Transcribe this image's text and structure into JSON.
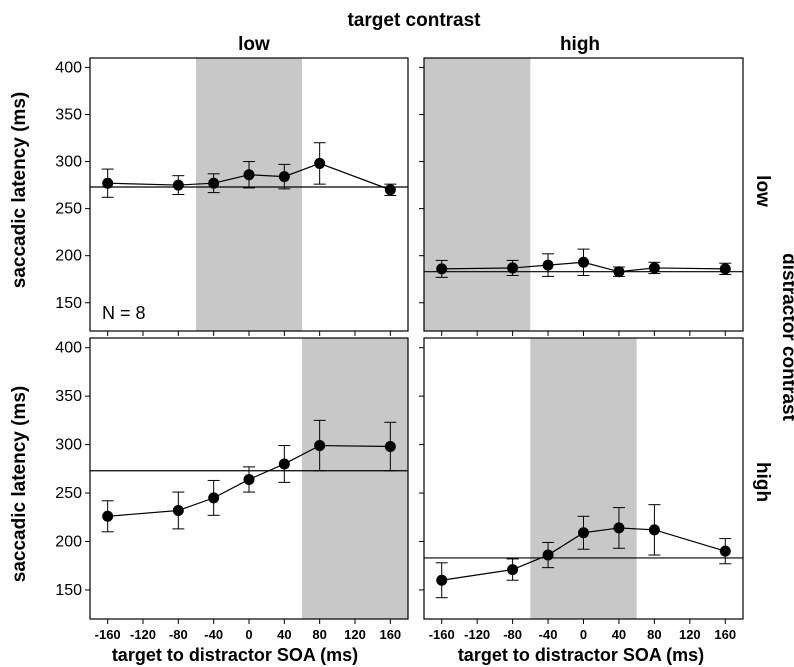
{
  "figure": {
    "top_title": "target contrast",
    "col_titles": [
      "low",
      "high"
    ],
    "right_title": "distractor contrast",
    "row_titles": [
      "low",
      "high"
    ],
    "ylabel": "saccadic latency (ms)",
    "xlabel": "target to distractor SOA (ms)",
    "annotation": "N = 8"
  },
  "chart_data": [
    {
      "type": "line",
      "panel": "target low / distractor low",
      "x": [
        -160,
        -80,
        -40,
        0,
        40,
        80,
        160
      ],
      "y": [
        277,
        275,
        277,
        286,
        284,
        298,
        270
      ],
      "err": [
        15,
        10,
        10,
        14,
        13,
        22,
        6
      ],
      "baseline": 273,
      "shaded_x": [
        -60,
        60
      ],
      "xlim": [
        -180,
        180
      ],
      "ylim": [
        120,
        410
      ],
      "yticks": [
        150,
        200,
        250,
        300,
        350,
        400
      ],
      "xticks": [
        -160,
        -120,
        -80,
        -40,
        0,
        40,
        80,
        120,
        160
      ],
      "annotation": "N = 8"
    },
    {
      "type": "line",
      "panel": "target high / distractor low",
      "x": [
        -160,
        -80,
        -40,
        0,
        40,
        80,
        160
      ],
      "y": [
        186,
        187,
        190,
        193,
        183,
        187,
        186
      ],
      "err": [
        9,
        8,
        12,
        14,
        5,
        6,
        6
      ],
      "baseline": 183,
      "shaded_x": [
        -180,
        -60
      ],
      "xlim": [
        -180,
        180
      ],
      "ylim": [
        120,
        410
      ],
      "yticks": [
        150,
        200,
        250,
        300,
        350,
        400
      ],
      "xticks": [
        -160,
        -120,
        -80,
        -40,
        0,
        40,
        80,
        120,
        160
      ]
    },
    {
      "type": "line",
      "panel": "target low / distractor high",
      "x": [
        -160,
        -80,
        -40,
        0,
        40,
        80,
        160
      ],
      "y": [
        226,
        232,
        245,
        264,
        280,
        299,
        298
      ],
      "err": [
        16,
        19,
        18,
        13,
        19,
        26,
        25
      ],
      "baseline": 273,
      "shaded_x": [
        60,
        180
      ],
      "xlim": [
        -180,
        180
      ],
      "ylim": [
        120,
        410
      ],
      "yticks": [
        150,
        200,
        250,
        300,
        350,
        400
      ],
      "xticks": [
        -160,
        -120,
        -80,
        -40,
        0,
        40,
        80,
        120,
        160
      ]
    },
    {
      "type": "line",
      "panel": "target high / distractor high",
      "x": [
        -160,
        -80,
        -40,
        0,
        40,
        80,
        160
      ],
      "y": [
        160,
        171,
        186,
        209,
        214,
        212,
        190
      ],
      "err": [
        18,
        11,
        13,
        17,
        21,
        26,
        13
      ],
      "baseline": 183,
      "shaded_x": [
        -60,
        60
      ],
      "xlim": [
        -180,
        180
      ],
      "ylim": [
        120,
        410
      ],
      "yticks": [
        150,
        200,
        250,
        300,
        350,
        400
      ],
      "xticks": [
        -160,
        -120,
        -80,
        -40,
        0,
        40,
        80,
        120,
        160
      ]
    }
  ]
}
